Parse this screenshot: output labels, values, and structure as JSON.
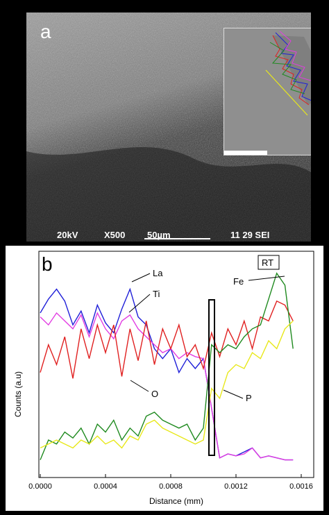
{
  "panel_a": {
    "letter": "a",
    "info_kv": "20kV",
    "info_mag": "X500",
    "info_scale": "50µm",
    "info_id": "11 29 SEI"
  },
  "panel_b": {
    "letter": "b"
  },
  "chart_data": {
    "type": "line",
    "ylabel": "Counts (a.u)",
    "xlabel": "Distance (mm)",
    "xlim": [
      0,
      0.0016
    ],
    "x_ticks": [
      "0.0000",
      "0.0004",
      "0.0008",
      "0.0012",
      "0.0016"
    ],
    "legend_box": "RT",
    "annotations": [
      "La",
      "Ti",
      "O",
      "Fe",
      "P"
    ],
    "grid": false,
    "series": [
      {
        "name": "La",
        "color": "#1f1fd8",
        "x": [
          0,
          5e-05,
          0.0001,
          0.00015,
          0.0002,
          0.00025,
          0.0003,
          0.00035,
          0.0004,
          0.00045,
          0.0005,
          0.00055,
          0.0006,
          0.00065,
          0.0007,
          0.00075,
          0.0008,
          0.00085,
          0.0009,
          0.00095,
          0.001,
          0.00105,
          0.0011,
          0.00115,
          0.0012,
          0.00125,
          0.0013,
          0.00135,
          0.0014,
          0.00145,
          0.0015,
          0.00155
        ],
        "y": [
          0.78,
          0.85,
          0.9,
          0.84,
          0.72,
          0.79,
          0.68,
          0.82,
          0.73,
          0.68,
          0.8,
          0.9,
          0.76,
          0.72,
          0.6,
          0.55,
          0.6,
          0.48,
          0.55,
          0.5,
          0.55,
          0.3,
          0.05,
          0.07,
          0.06,
          0.08,
          0.1,
          0.05,
          0.06,
          0.05,
          0.04,
          0.04
        ]
      },
      {
        "name": "Ti",
        "color": "#e23ce2",
        "x": [
          0,
          5e-05,
          0.0001,
          0.00015,
          0.0002,
          0.00025,
          0.0003,
          0.00035,
          0.0004,
          0.00045,
          0.0005,
          0.00055,
          0.0006,
          0.00065,
          0.0007,
          0.00075,
          0.0008,
          0.00085,
          0.0009,
          0.00095,
          0.001,
          0.00105,
          0.0011,
          0.00115,
          0.0012,
          0.00125,
          0.0013,
          0.00135,
          0.0014,
          0.00145,
          0.0015,
          0.00155
        ],
        "y": [
          0.76,
          0.72,
          0.78,
          0.74,
          0.7,
          0.77,
          0.66,
          0.78,
          0.7,
          0.65,
          0.74,
          0.77,
          0.7,
          0.66,
          0.62,
          0.58,
          0.6,
          0.55,
          0.58,
          0.56,
          0.55,
          0.3,
          0.05,
          0.07,
          0.06,
          0.07,
          0.1,
          0.05,
          0.06,
          0.05,
          0.04,
          0.04
        ]
      },
      {
        "name": "O",
        "color": "#e02020",
        "x": [
          0,
          5e-05,
          0.0001,
          0.00015,
          0.0002,
          0.00025,
          0.0003,
          0.00035,
          0.0004,
          0.00045,
          0.0005,
          0.00055,
          0.0006,
          0.00065,
          0.0007,
          0.00075,
          0.0008,
          0.00085,
          0.0009,
          0.00095,
          0.001,
          0.00105,
          0.0011,
          0.00115,
          0.0012,
          0.00125,
          0.0013,
          0.00135,
          0.0014,
          0.00145,
          0.0015,
          0.00155
        ],
        "y": [
          0.48,
          0.62,
          0.52,
          0.66,
          0.45,
          0.7,
          0.55,
          0.72,
          0.58,
          0.72,
          0.46,
          0.7,
          0.54,
          0.74,
          0.52,
          0.7,
          0.6,
          0.72,
          0.56,
          0.62,
          0.5,
          0.68,
          0.56,
          0.7,
          0.62,
          0.74,
          0.6,
          0.76,
          0.74,
          0.84,
          0.82,
          0.74
        ]
      },
      {
        "name": "Fe",
        "color": "#1f8a1f",
        "x": [
          0,
          5e-05,
          0.0001,
          0.00015,
          0.0002,
          0.00025,
          0.0003,
          0.00035,
          0.0004,
          0.00045,
          0.0005,
          0.00055,
          0.0006,
          0.00065,
          0.0007,
          0.00075,
          0.0008,
          0.00085,
          0.0009,
          0.00095,
          0.001,
          0.00105,
          0.0011,
          0.00115,
          0.0012,
          0.00125,
          0.0013,
          0.00135,
          0.0014,
          0.00145,
          0.0015,
          0.00155
        ],
        "y": [
          0.04,
          0.14,
          0.12,
          0.18,
          0.15,
          0.2,
          0.12,
          0.22,
          0.18,
          0.24,
          0.14,
          0.2,
          0.16,
          0.26,
          0.28,
          0.24,
          0.22,
          0.2,
          0.22,
          0.14,
          0.2,
          0.62,
          0.58,
          0.62,
          0.6,
          0.66,
          0.7,
          0.72,
          0.85,
          0.98,
          0.92,
          0.6
        ]
      },
      {
        "name": "P",
        "color": "#e8e81a",
        "x": [
          0,
          5e-05,
          0.0001,
          0.00015,
          0.0002,
          0.00025,
          0.0003,
          0.00035,
          0.0004,
          0.00045,
          0.0005,
          0.00055,
          0.0006,
          0.00065,
          0.0007,
          0.00075,
          0.0008,
          0.00085,
          0.0009,
          0.00095,
          0.001,
          0.00105,
          0.0011,
          0.00115,
          0.0012,
          0.00125,
          0.0013,
          0.00135,
          0.0014,
          0.00145,
          0.0015,
          0.00155
        ],
        "y": [
          0.1,
          0.12,
          0.14,
          0.12,
          0.1,
          0.14,
          0.12,
          0.16,
          0.12,
          0.14,
          0.1,
          0.16,
          0.14,
          0.22,
          0.24,
          0.2,
          0.18,
          0.16,
          0.14,
          0.12,
          0.14,
          0.4,
          0.35,
          0.48,
          0.52,
          0.5,
          0.58,
          0.55,
          0.64,
          0.6,
          0.7,
          0.74
        ]
      }
    ]
  }
}
